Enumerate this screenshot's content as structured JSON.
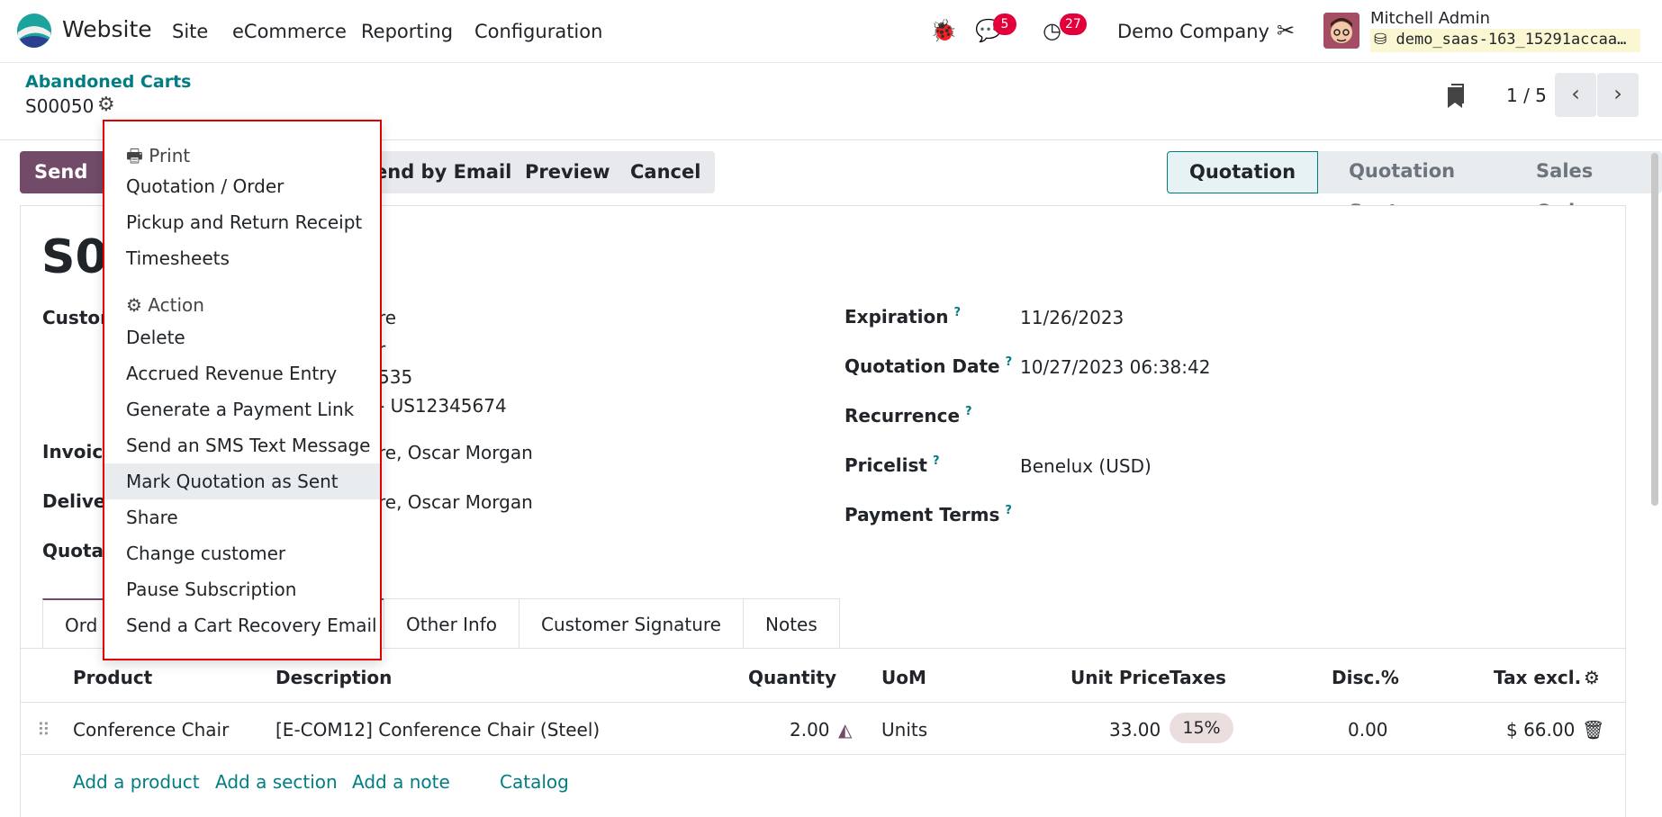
{
  "nav": {
    "app_name": "Website",
    "menus": [
      "Site",
      "eCommerce",
      "Reporting",
      "Configuration"
    ],
    "chat_badge": "5",
    "activity_badge": "27",
    "company": "Demo Company",
    "user_name": "Mitchell Admin",
    "database": "demo_saas-163_15291accaa…"
  },
  "breadcrumb": {
    "parent": "Abandoned Carts",
    "current": "S00050"
  },
  "pager": {
    "value": "1 / 5"
  },
  "buttons": {
    "send": "Send a P",
    "email": "end by Email",
    "preview": "Preview",
    "cancel": "Cancel"
  },
  "statusbar": [
    "Quotation",
    "Quotation Sent",
    "Sales Order"
  ],
  "record": {
    "title": "S00",
    "customer_label": "Custor",
    "customer_lines": [
      "re",
      "r",
      "535",
      "- US12345674"
    ],
    "invoice_label": "Invoice",
    "invoice_value": "re, Oscar Morgan",
    "delivery_label": "Delive",
    "delivery_value": "re, Oscar Morgan",
    "quotation_label": "Quotat",
    "expiration_label": "Expiration",
    "expiration_value": "11/26/2023",
    "qdate_label": "Quotation Date",
    "qdate_value": "10/27/2023 06:38:42",
    "recurrence_label": "Recurrence",
    "pricelist_label": "Pricelist",
    "pricelist_value": "Benelux (USD)",
    "payment_terms_label": "Payment Terms"
  },
  "tabs": [
    "Ord",
    "Other Info",
    "Customer Signature",
    "Notes"
  ],
  "table": {
    "headers": {
      "product": "Product",
      "description": "Description",
      "quantity": "Quantity",
      "uom": "UoM",
      "unit_price": "Unit Price",
      "taxes": "Taxes",
      "disc": "Disc.%",
      "tax_excl": "Tax excl."
    },
    "row": {
      "product": "Conference Chair",
      "description": "[E-COM12] Conference Chair (Steel)",
      "quantity": "2.00",
      "uom": "Units",
      "unit_price": "33.00",
      "taxes": "15%",
      "disc": "0.00",
      "tax_excl": "$ 66.00"
    },
    "links": [
      "Add a product",
      "Add a section",
      "Add a note",
      "Catalog"
    ]
  },
  "dropdown": {
    "print_header": "Print",
    "print_items": [
      "Quotation / Order",
      "Pickup and Return Receipt",
      "Timesheets"
    ],
    "action_header": "Action",
    "action_items": [
      "Delete",
      "Accrued Revenue Entry",
      "Generate a Payment Link",
      "Send an SMS Text Message",
      "Mark Quotation as Sent",
      "Share",
      "Change customer",
      "Pause Subscription",
      "Send a Cart Recovery Email"
    ],
    "highlighted": "Mark Quotation as Sent"
  },
  "colors": {
    "brand": "#714b67",
    "link": "#017e84",
    "badge": "#e3003a",
    "highlight_border": "#e00000"
  }
}
